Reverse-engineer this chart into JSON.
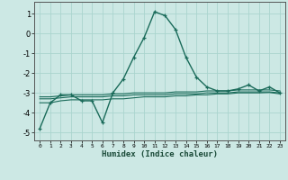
{
  "title": "",
  "xlabel": "Humidex (Indice chaleur)",
  "ylabel": "",
  "background_color": "#cce8e4",
  "grid_color": "#aad4ce",
  "line_color": "#1a6b5a",
  "xlim": [
    -0.5,
    23.5
  ],
  "ylim": [
    -5.4,
    1.6
  ],
  "yticks": [
    1,
    0,
    -1,
    -2,
    -3,
    -4,
    -5
  ],
  "xticks": [
    0,
    1,
    2,
    3,
    4,
    5,
    6,
    7,
    8,
    9,
    10,
    11,
    12,
    13,
    14,
    15,
    16,
    17,
    18,
    19,
    20,
    21,
    22,
    23
  ],
  "curve1_x": [
    0,
    1,
    2,
    3,
    4,
    5,
    6,
    7,
    8,
    9,
    10,
    11,
    12,
    13,
    14,
    15,
    16,
    17,
    18,
    19,
    20,
    21,
    22,
    23
  ],
  "curve1_y": [
    -4.8,
    -3.5,
    -3.1,
    -3.1,
    -3.4,
    -3.4,
    -4.5,
    -3.0,
    -2.3,
    -1.2,
    -0.2,
    1.1,
    0.9,
    0.2,
    -1.2,
    -2.2,
    -2.7,
    -2.9,
    -2.9,
    -2.8,
    -2.6,
    -2.9,
    -2.7,
    -3.0
  ],
  "curve2_x": [
    0,
    1,
    2,
    3,
    4,
    5,
    6,
    7,
    8,
    9,
    10,
    11,
    12,
    13,
    14,
    15,
    16,
    17,
    18,
    19,
    20,
    21,
    22,
    23
  ],
  "curve2_y": [
    -3.2,
    -3.2,
    -3.15,
    -3.1,
    -3.1,
    -3.1,
    -3.1,
    -3.05,
    -3.05,
    -3.0,
    -3.0,
    -3.0,
    -3.0,
    -2.95,
    -2.95,
    -2.95,
    -2.9,
    -2.9,
    -2.9,
    -2.85,
    -2.85,
    -2.85,
    -2.85,
    -2.9
  ],
  "curve3_x": [
    0,
    1,
    2,
    3,
    4,
    5,
    6,
    7,
    8,
    9,
    10,
    11,
    12,
    13,
    14,
    15,
    16,
    17,
    18,
    19,
    20,
    21,
    22,
    23
  ],
  "curve3_y": [
    -3.3,
    -3.3,
    -3.25,
    -3.2,
    -3.2,
    -3.2,
    -3.2,
    -3.15,
    -3.15,
    -3.1,
    -3.1,
    -3.1,
    -3.1,
    -3.05,
    -3.05,
    -3.05,
    -3.0,
    -3.0,
    -3.0,
    -2.95,
    -2.95,
    -2.95,
    -2.95,
    -3.0
  ],
  "curve4_x": [
    0,
    1,
    2,
    3,
    4,
    5,
    6,
    7,
    8,
    9,
    10,
    11,
    12,
    13,
    14,
    15,
    16,
    17,
    18,
    19,
    20,
    21,
    22,
    23
  ],
  "curve4_y": [
    -3.5,
    -3.5,
    -3.4,
    -3.35,
    -3.35,
    -3.35,
    -3.35,
    -3.3,
    -3.3,
    -3.25,
    -3.2,
    -3.2,
    -3.2,
    -3.15,
    -3.15,
    -3.1,
    -3.1,
    -3.05,
    -3.05,
    -3.0,
    -3.0,
    -3.0,
    -2.98,
    -3.05
  ]
}
